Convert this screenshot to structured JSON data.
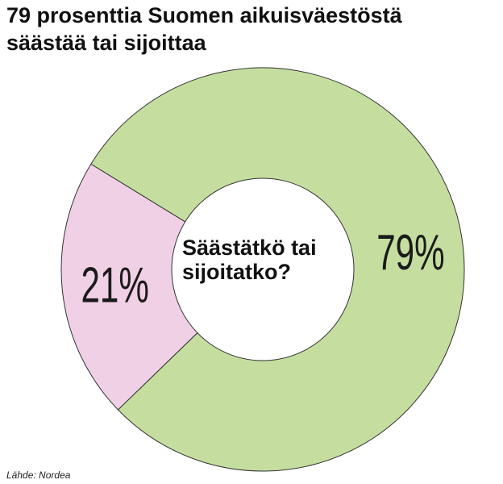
{
  "chart_data": {
    "type": "pie",
    "title": "79 prosenttia Suomen aikuisväestöstä säästää tai sijoittaa",
    "center_text": "Säästätkö tai sijoitatko?",
    "source": "Lähde: Nordea",
    "values": [
      79,
      21
    ],
    "value_labels": [
      "79%",
      "21%"
    ],
    "colors": [
      "#c5dea0",
      "#f0d0e4"
    ]
  }
}
